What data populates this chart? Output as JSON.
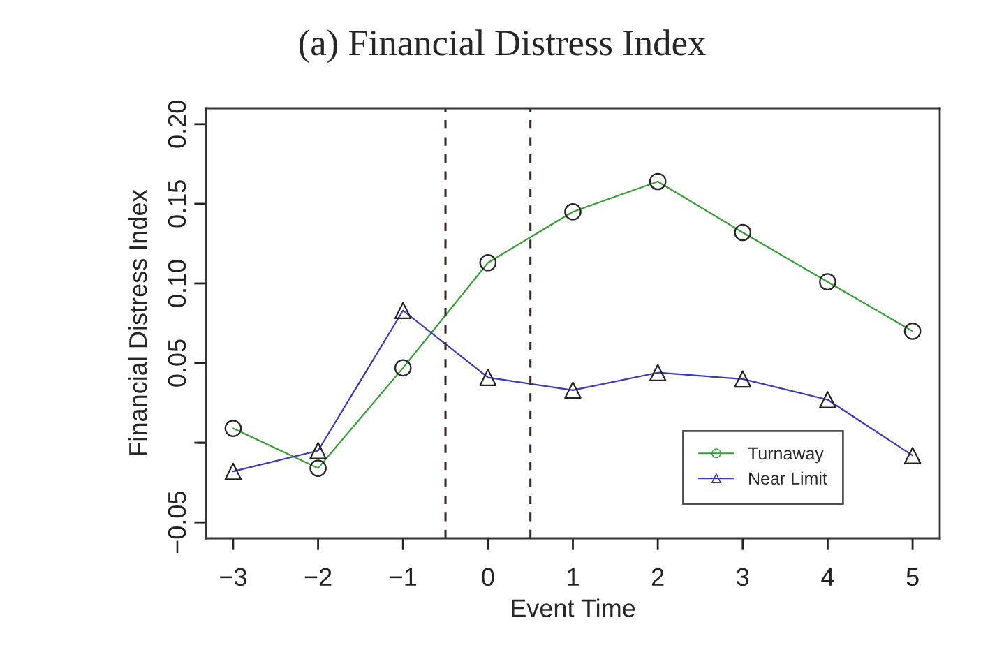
{
  "chart_data": {
    "type": "line",
    "title": "(a) Financial Distress Index",
    "xlabel": "Event Time",
    "ylabel": "Financial Distress Index",
    "x": [
      -3,
      -2,
      -1,
      0,
      1,
      2,
      3,
      4,
      5
    ],
    "series": [
      {
        "name": "Turnaway",
        "color": "#3a9a3a",
        "marker": "circle",
        "values": [
          0.009,
          -0.016,
          0.047,
          0.113,
          0.145,
          0.164,
          0.132,
          0.101,
          0.07
        ]
      },
      {
        "name": "Near Limit",
        "color": "#3b3bb0",
        "marker": "triangle",
        "values": [
          -0.018,
          -0.005,
          0.083,
          0.041,
          0.033,
          0.044,
          0.04,
          0.027,
          -0.008
        ]
      }
    ],
    "xlim": [
      -3.32,
      5.32
    ],
    "xticks": [
      {
        "value": -3,
        "label": "−3"
      },
      {
        "value": -2,
        "label": "−2"
      },
      {
        "value": -1,
        "label": "−1"
      },
      0,
      1,
      2,
      3,
      4,
      5
    ],
    "ylim": [
      -0.06,
      0.21
    ],
    "yticks": [
      {
        "value": -0.05,
        "label": "−0.05"
      },
      {
        "value": 0,
        "label": null
      },
      {
        "value": 0.05,
        "label": "0.05"
      },
      {
        "value": 0.1,
        "label": "0.10"
      },
      {
        "value": 0.15,
        "label": "0.15"
      },
      {
        "value": 0.2,
        "label": "0.20"
      }
    ],
    "ref_lines": [
      {
        "axis": "x",
        "value": -0.5,
        "color": "#3a2a2a",
        "line_style": "dashed"
      },
      {
        "axis": "x",
        "value": 0.5,
        "color": "#3a2a2a",
        "line_style": "dashed"
      }
    ],
    "grid": false,
    "legend": "bottom right",
    "line_style": "solid"
  }
}
